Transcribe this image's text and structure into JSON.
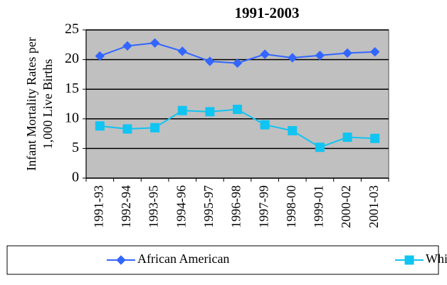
{
  "chart_data": {
    "type": "line",
    "title": "1991-2003",
    "ylabel": [
      "Infant Mortality Rates per",
      "1,000 Live Births"
    ],
    "categories": [
      "1991-93",
      "1992-94",
      "1993-95",
      "1994-96",
      "1995-97",
      "1996-98",
      "1997-99",
      "1998-00",
      "1999-01",
      "2000-02",
      "2001-03"
    ],
    "series": [
      {
        "name": "African American",
        "color": "#3366ff",
        "marker": "diamond",
        "values": [
          20.6,
          22.3,
          22.8,
          21.4,
          19.7,
          19.4,
          20.9,
          20.3,
          20.7,
          21.1,
          21.3
        ]
      },
      {
        "name": "White",
        "color": "#11c4f2",
        "marker": "square",
        "values": [
          8.8,
          8.3,
          8.5,
          11.4,
          11.2,
          11.6,
          9.0,
          8.0,
          5.2,
          6.9,
          6.7
        ]
      }
    ],
    "ylim": [
      0,
      25
    ],
    "yticks": [
      0,
      5,
      10,
      15,
      20,
      25
    ],
    "grid": true,
    "legend": "bottom"
  }
}
